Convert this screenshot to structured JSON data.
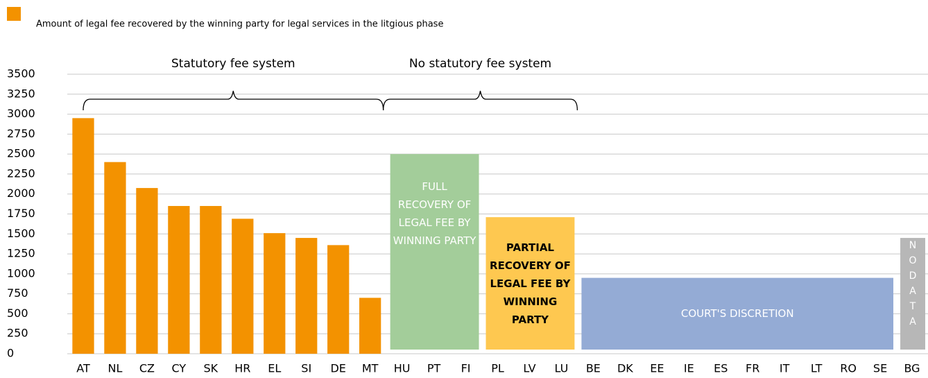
{
  "chart_data": {
    "type": "bar",
    "series": [
      {
        "name": "Amount of legal fee recovered by the winning party for legal services in the litgious phase",
        "color": "#f39200",
        "values": [
          2950,
          2400,
          2075,
          1850,
          1850,
          1690,
          1510,
          1450,
          1360,
          700,
          null,
          null,
          null,
          null,
          null,
          null,
          null,
          null,
          null,
          null,
          null,
          null,
          null,
          null,
          null,
          null,
          null
        ]
      }
    ],
    "categories": [
      "AT",
      "NL",
      "CZ",
      "CY",
      "SK",
      "HR",
      "EL",
      "SI",
      "DE",
      "MT",
      "HU",
      "PT",
      "FI",
      "PL",
      "LV",
      "LU",
      "BE",
      "DK",
      "EE",
      "IE",
      "ES",
      "FR",
      "IT",
      "LT",
      "RO",
      "SE",
      "BG"
    ],
    "ylim": [
      0,
      3500
    ],
    "yticks": [
      0,
      250,
      500,
      750,
      1000,
      1250,
      1500,
      1750,
      2000,
      2250,
      2500,
      2750,
      3000,
      3250,
      3500
    ],
    "grid": true,
    "groups": [
      "Statutory fee system",
      "No statutory fee system"
    ],
    "regions": [
      {
        "text": "FULL RECOVERY OF LEGAL FEE BY WINNING PARTY",
        "top": 2500,
        "color": "#a3cd9a",
        "text_color": "#ffffff"
      },
      {
        "text": "PARTIAL RECOVERY OF LEGAL FEE BY WINNING PARTY",
        "top": 1710,
        "color": "#fec850",
        "text_color": "#000000"
      },
      {
        "text": "COURT'S DISCRETION",
        "top": 950,
        "color": "#94abd5",
        "text_color": "#ffffff"
      },
      {
        "text": "NO DATA",
        "top": 1450,
        "color": "#b7b7b7",
        "text_color": "#ffffff"
      }
    ]
  }
}
